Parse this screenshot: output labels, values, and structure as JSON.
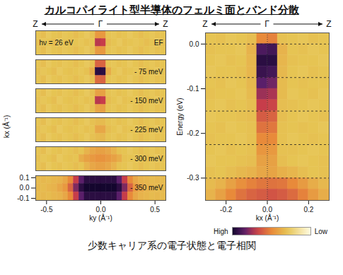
{
  "title": "カルコパイライト型半導体のフェルミ面とバンド分散",
  "caption": "少数キャリア系の電子状態と電子相関",
  "colormap": {
    "stops": [
      0,
      0.3,
      0.5,
      0.7,
      0.85,
      1
    ],
    "colors": [
      "#fffbe2",
      "#e6c453",
      "#e88a3a",
      "#c73d4a",
      "#5a1f6a",
      "#14062e"
    ]
  },
  "colorbar": {
    "range": [
      1,
      0
    ],
    "labels": [
      "High",
      "Low"
    ]
  },
  "chart_data": [
    {
      "type": "heatmap_stack",
      "direction_labels": [
        "Z",
        "Γ",
        "Z"
      ],
      "xlabel": "ky (Å⁻¹)",
      "ylabel": "kx (Å⁻¹)",
      "xlim": [
        -0.6,
        0.6
      ],
      "xticks": [
        -0.5,
        {
          "value": 0,
          "label": "0.0"
        },
        0.5
      ],
      "ylim": [
        -0.12,
        0.12
      ],
      "yticks": [
        -0.1,
        {
          "value": 0,
          "label": "0.0"
        },
        0.1
      ],
      "x_edges": [
        -0.6,
        -0.55,
        -0.5,
        -0.45,
        -0.4,
        -0.35,
        -0.3,
        -0.25,
        -0.2,
        -0.15,
        -0.1,
        -0.05,
        0,
        0.05,
        0.1,
        0.15,
        0.2,
        0.25,
        0.3,
        0.35,
        0.4,
        0.45,
        0.5,
        0.55,
        0.6
      ],
      "y_edges": [
        0.12,
        0.04,
        -0.04,
        -0.12
      ],
      "panels": [
        {
          "label": "EF",
          "annotation": "hν = 26 eV",
          "cells": [
            [
              0.3,
              0.32,
              0.28,
              0.3,
              0.31,
              0.29,
              0.3,
              0.32,
              0.3,
              0.28,
              0.31,
              0.45,
              0.45,
              0.3,
              0.29,
              0.31,
              0.3,
              0.28,
              0.3,
              0.32,
              0.3,
              0.29,
              0.31,
              0.3
            ],
            [
              0.31,
              0.29,
              0.3,
              0.32,
              0.28,
              0.3,
              0.31,
              0.3,
              0.29,
              0.31,
              0.3,
              0.72,
              0.7,
              0.32,
              0.3,
              0.28,
              0.31,
              0.3,
              0.29,
              0.3,
              0.32,
              0.3,
              0.28,
              0.31
            ],
            [
              0.3,
              0.32,
              0.28,
              0.3,
              0.31,
              0.29,
              0.3,
              0.32,
              0.3,
              0.28,
              0.31,
              0.44,
              0.45,
              0.3,
              0.29,
              0.31,
              0.3,
              0.28,
              0.3,
              0.32,
              0.3,
              0.29,
              0.31,
              0.3
            ]
          ]
        },
        {
          "label": "- 75 meV",
          "cells": [
            [
              0.3,
              0.32,
              0.28,
              0.3,
              0.31,
              0.29,
              0.3,
              0.32,
              0.3,
              0.28,
              0.31,
              0.6,
              0.6,
              0.3,
              0.29,
              0.31,
              0.3,
              0.28,
              0.3,
              0.32,
              0.3,
              0.29,
              0.31,
              0.3
            ],
            [
              0.31,
              0.29,
              0.3,
              0.32,
              0.28,
              0.3,
              0.31,
              0.3,
              0.29,
              0.31,
              0.38,
              0.95,
              0.95,
              0.38,
              0.3,
              0.28,
              0.31,
              0.3,
              0.29,
              0.3,
              0.32,
              0.3,
              0.28,
              0.31
            ],
            [
              0.3,
              0.32,
              0.28,
              0.3,
              0.31,
              0.29,
              0.3,
              0.32,
              0.3,
              0.28,
              0.31,
              0.58,
              0.6,
              0.3,
              0.29,
              0.31,
              0.3,
              0.28,
              0.3,
              0.32,
              0.3,
              0.29,
              0.31,
              0.3
            ]
          ]
        },
        {
          "label": "- 150 meV",
          "cells": [
            [
              0.3,
              0.32,
              0.28,
              0.3,
              0.31,
              0.29,
              0.3,
              0.32,
              0.3,
              0.28,
              0.31,
              0.42,
              0.42,
              0.3,
              0.29,
              0.31,
              0.3,
              0.28,
              0.3,
              0.32,
              0.3,
              0.29,
              0.31,
              0.3
            ],
            [
              0.31,
              0.29,
              0.3,
              0.32,
              0.28,
              0.3,
              0.31,
              0.3,
              0.29,
              0.31,
              0.3,
              0.72,
              0.7,
              0.32,
              0.3,
              0.28,
              0.31,
              0.3,
              0.29,
              0.3,
              0.32,
              0.3,
              0.28,
              0.31
            ],
            [
              0.3,
              0.32,
              0.28,
              0.3,
              0.31,
              0.29,
              0.3,
              0.32,
              0.3,
              0.28,
              0.31,
              0.4,
              0.42,
              0.3,
              0.29,
              0.31,
              0.3,
              0.28,
              0.3,
              0.32,
              0.3,
              0.29,
              0.31,
              0.3
            ]
          ]
        },
        {
          "label": "- 225 meV",
          "cells": [
            [
              0.3,
              0.32,
              0.28,
              0.3,
              0.31,
              0.29,
              0.3,
              0.32,
              0.3,
              0.28,
              0.31,
              0.33,
              0.33,
              0.3,
              0.29,
              0.31,
              0.3,
              0.28,
              0.3,
              0.32,
              0.3,
              0.29,
              0.31,
              0.3
            ],
            [
              0.31,
              0.29,
              0.3,
              0.32,
              0.28,
              0.3,
              0.31,
              0.3,
              0.29,
              0.31,
              0.3,
              0.4,
              0.4,
              0.32,
              0.3,
              0.28,
              0.31,
              0.3,
              0.29,
              0.3,
              0.32,
              0.3,
              0.28,
              0.31
            ],
            [
              0.3,
              0.32,
              0.28,
              0.3,
              0.31,
              0.29,
              0.3,
              0.32,
              0.3,
              0.28,
              0.31,
              0.33,
              0.34,
              0.3,
              0.29,
              0.31,
              0.3,
              0.28,
              0.3,
              0.32,
              0.3,
              0.29,
              0.31,
              0.3
            ]
          ]
        },
        {
          "label": "- 300 meV",
          "cells": [
            [
              0.3,
              0.32,
              0.28,
              0.3,
              0.31,
              0.29,
              0.3,
              0.32,
              0.3,
              0.36,
              0.4,
              0.42,
              0.42,
              0.4,
              0.36,
              0.31,
              0.3,
              0.28,
              0.3,
              0.32,
              0.3,
              0.29,
              0.31,
              0.3
            ],
            [
              0.31,
              0.29,
              0.3,
              0.32,
              0.28,
              0.3,
              0.31,
              0.3,
              0.38,
              0.42,
              0.45,
              0.47,
              0.47,
              0.45,
              0.42,
              0.38,
              0.31,
              0.3,
              0.29,
              0.3,
              0.32,
              0.3,
              0.28,
              0.31
            ],
            [
              0.3,
              0.32,
              0.28,
              0.3,
              0.31,
              0.29,
              0.3,
              0.32,
              0.3,
              0.36,
              0.4,
              0.42,
              0.42,
              0.4,
              0.36,
              0.31,
              0.3,
              0.28,
              0.3,
              0.32,
              0.3,
              0.29,
              0.31,
              0.3
            ]
          ]
        },
        {
          "label": "- 350 meV",
          "cells": [
            [
              0.33,
              0.34,
              0.33,
              0.35,
              0.36,
              0.4,
              0.5,
              0.7,
              0.85,
              0.95,
              0.95,
              0.95,
              0.95,
              0.95,
              0.95,
              0.85,
              0.7,
              0.5,
              0.4,
              0.36,
              0.35,
              0.33,
              0.34,
              0.33
            ],
            [
              0.34,
              0.33,
              0.35,
              0.36,
              0.4,
              0.45,
              0.6,
              0.8,
              0.95,
              1,
              1,
              1,
              1,
              1,
              1,
              0.95,
              0.8,
              0.6,
              0.45,
              0.4,
              0.36,
              0.35,
              0.33,
              0.34
            ],
            [
              0.33,
              0.34,
              0.33,
              0.35,
              0.36,
              0.4,
              0.5,
              0.7,
              0.85,
              0.95,
              0.95,
              0.95,
              0.95,
              0.95,
              0.95,
              0.85,
              0.7,
              0.5,
              0.4,
              0.36,
              0.35,
              0.33,
              0.34,
              0.33
            ]
          ]
        }
      ]
    },
    {
      "type": "heatmap",
      "direction_labels": [
        "Z",
        "Γ",
        "Z"
      ],
      "xlabel": "kx (Å⁻¹)",
      "ylabel": "Energy (eV)",
      "xlim": [
        -0.3,
        0.3
      ],
      "xticks": [
        -0.2,
        {
          "value": 0,
          "label": "0.0"
        },
        0.2
      ],
      "ylim": [
        -0.35,
        0.025
      ],
      "yticks": [
        {
          "value": 0,
          "label": "0.0"
        },
        -0.1,
        -0.2,
        -0.3
      ],
      "reference_energies": [
        0,
        -0.075,
        -0.15,
        -0.225,
        -0.3
      ],
      "reference_k": [
        0
      ],
      "x_edges": [
        -0.3,
        -0.25,
        -0.2,
        -0.15,
        -0.1,
        -0.05,
        0,
        0.05,
        0.1,
        0.15,
        0.2,
        0.25,
        0.3
      ],
      "y_edges": [
        0.025,
        0,
        -0.025,
        -0.05,
        -0.075,
        -0.1,
        -0.125,
        -0.15,
        -0.175,
        -0.2,
        -0.225,
        -0.25,
        -0.275,
        -0.3,
        -0.325,
        -0.35
      ],
      "cells": [
        [
          0.3,
          0.31,
          0.29,
          0.3,
          0.32,
          0.5,
          0.52,
          0.31,
          0.3,
          0.29,
          0.31,
          0.3
        ],
        [
          0.31,
          0.3,
          0.3,
          0.29,
          0.36,
          0.88,
          0.9,
          0.36,
          0.3,
          0.31,
          0.29,
          0.3
        ],
        [
          0.3,
          0.29,
          0.31,
          0.3,
          0.35,
          0.95,
          0.95,
          0.35,
          0.31,
          0.3,
          0.3,
          0.29
        ],
        [
          0.29,
          0.3,
          0.3,
          0.31,
          0.35,
          0.92,
          0.9,
          0.34,
          0.3,
          0.29,
          0.31,
          0.3
        ],
        [
          0.3,
          0.31,
          0.29,
          0.3,
          0.34,
          0.85,
          0.82,
          0.33,
          0.3,
          0.31,
          0.3,
          0.3
        ],
        [
          0.31,
          0.3,
          0.3,
          0.29,
          0.33,
          0.76,
          0.74,
          0.33,
          0.29,
          0.3,
          0.31,
          0.29
        ],
        [
          0.3,
          0.29,
          0.31,
          0.3,
          0.32,
          0.7,
          0.68,
          0.32,
          0.31,
          0.3,
          0.29,
          0.3
        ],
        [
          0.29,
          0.3,
          0.3,
          0.31,
          0.32,
          0.62,
          0.6,
          0.32,
          0.3,
          0.29,
          0.3,
          0.31
        ],
        [
          0.3,
          0.31,
          0.29,
          0.3,
          0.31,
          0.56,
          0.55,
          0.31,
          0.3,
          0.31,
          0.3,
          0.29
        ],
        [
          0.31,
          0.3,
          0.3,
          0.29,
          0.31,
          0.5,
          0.5,
          0.31,
          0.29,
          0.3,
          0.31,
          0.3
        ],
        [
          0.3,
          0.29,
          0.31,
          0.3,
          0.31,
          0.46,
          0.45,
          0.31,
          0.31,
          0.3,
          0.29,
          0.3
        ],
        [
          0.29,
          0.3,
          0.3,
          0.31,
          0.32,
          0.42,
          0.42,
          0.32,
          0.3,
          0.29,
          0.3,
          0.31
        ],
        [
          0.31,
          0.3,
          0.32,
          0.34,
          0.36,
          0.4,
          0.41,
          0.37,
          0.35,
          0.32,
          0.3,
          0.31
        ],
        [
          0.33,
          0.36,
          0.42,
          0.48,
          0.52,
          0.55,
          0.56,
          0.55,
          0.5,
          0.44,
          0.38,
          0.34
        ],
        [
          0.36,
          0.42,
          0.5,
          0.56,
          0.6,
          0.62,
          0.64,
          0.62,
          0.58,
          0.52,
          0.44,
          0.38
        ]
      ]
    }
  ]
}
